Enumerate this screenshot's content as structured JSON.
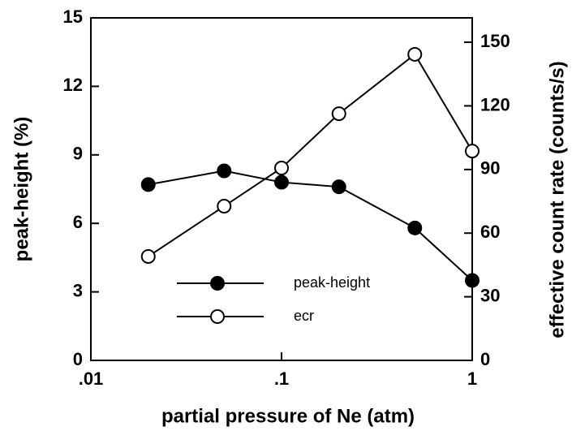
{
  "chart_data": {
    "type": "line",
    "xlabel": "partial pressure of Ne (atm)",
    "ylabel": "peak-height (%)",
    "y2label": "effective count rate (counts/s)",
    "xscale": "log",
    "x": [
      0.02,
      0.05,
      0.1,
      0.2,
      0.5,
      1
    ],
    "xlim": [
      0.01,
      1
    ],
    "xticks": [
      {
        "value": 0.01,
        "label": ".01"
      },
      {
        "value": 0.1,
        "label": ".1"
      },
      1
    ],
    "ylim": [
      0,
      15
    ],
    "yticks": [
      0,
      3,
      6,
      9,
      12,
      15
    ],
    "y2lim": [
      0,
      161.5
    ],
    "y2ticks": [
      0,
      30,
      60,
      90,
      120,
      150
    ],
    "legend": "lower center",
    "series": [
      {
        "name": "peak-height",
        "color": "#000000",
        "marker": "filled",
        "values": [
          7.7,
          8.3,
          7.8,
          7.6,
          5.8,
          3.5
        ]
      },
      {
        "name": "ecr",
        "color": "#000000",
        "marker": "open",
        "axis": "y2",
        "values": [
          49,
          72.7,
          90.7,
          116.3,
          144.3,
          98.7
        ]
      }
    ]
  }
}
